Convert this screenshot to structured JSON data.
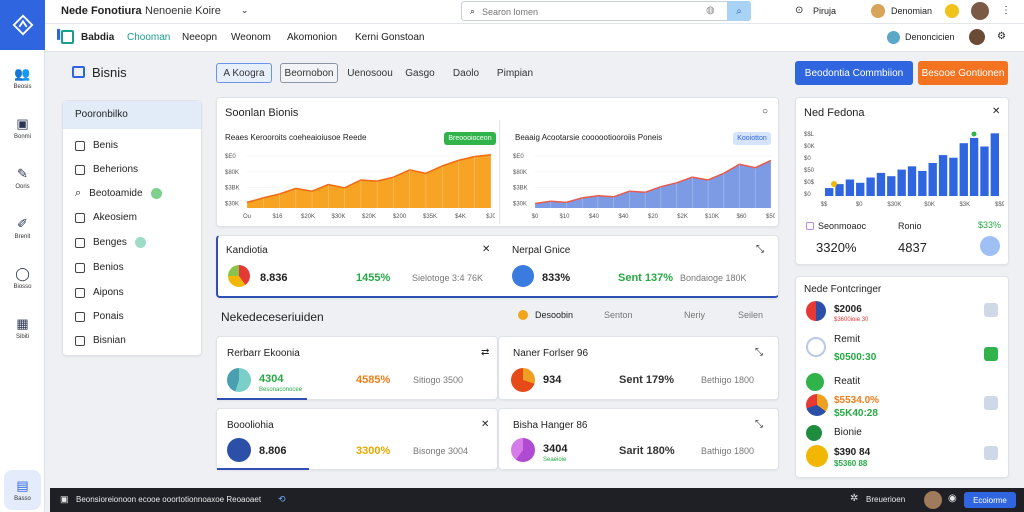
{
  "app": {
    "title": "Nede Fonotiura",
    "subtitle": "Nenoenie Koire"
  },
  "search": {
    "placeholder": "Searon lomen"
  },
  "topbar": {
    "user1": "Piruja",
    "user2": "Denomian"
  },
  "subbar": {
    "brand": "Babdia",
    "brand2": "Chooman",
    "nav": [
      "Neeopn",
      "Weonom",
      "Akomonion",
      "Kerni Gonstoan"
    ],
    "profile": "Denoncicien"
  },
  "page": {
    "title": "Bisnis",
    "tabs": [
      "A Koogra",
      "Beornobon",
      "Uenosoou",
      "Gasgo",
      "Daolo",
      "Pimpian"
    ],
    "primary_button": "Beodontia Commbiion",
    "secondary_button": "Besooe Gontionen"
  },
  "rail": [
    "Beosis",
    "Bonmi",
    "Ooris",
    "Brenit",
    "Biosso",
    "Sibiti",
    "Basso"
  ],
  "filter": {
    "title": "Pooronbilko",
    "items": [
      "Benis",
      "Beherions",
      "Beotoamide",
      "Akeosiem",
      "Benges",
      "Benios",
      "Aipons",
      "Ponais",
      "Bisnian"
    ]
  },
  "trend": {
    "title": "Soonlan Bionis",
    "chart1_title": "Reaes Kerooroits coeheaioiusoe Reede",
    "chart1_badge": "Breoooioceon",
    "chart2_title": "Beaaig Acootarsie coooootiooroiis Poneis",
    "chart2_badge": "Kooiotton",
    "y_ticks": [
      "$E0",
      "$80K",
      "$3BK",
      "$30K"
    ],
    "x_ticks1": [
      "Ou",
      "$16",
      "$20K",
      "$30K",
      "$20K",
      "$200",
      "$35K",
      "$4K",
      "$J0"
    ],
    "x_ticks2": [
      "$0",
      "$10",
      "$40",
      "$40",
      "$20",
      "$2K",
      "$10K",
      "$60",
      "$50"
    ]
  },
  "chart_data": [
    {
      "type": "area",
      "title": "Reaes Kerooroits coeheaioiusoe Reede",
      "y_ticks": [
        "$E0",
        "$80K",
        "$3BK",
        "$30K"
      ],
      "x_ticks": [
        "Ou",
        "$16",
        "$20K",
        "$30K",
        "$20K",
        "$200",
        "$35K",
        "$4K",
        "$J0"
      ],
      "values": [
        0.1,
        0.18,
        0.25,
        0.35,
        0.3,
        0.42,
        0.36,
        0.5,
        0.48,
        0.55,
        0.68,
        0.62,
        0.75,
        0.85,
        0.92,
        0.95
      ]
    },
    {
      "type": "area",
      "title": "Beaaig Acootarsie coooootiooroiis Poneis",
      "y_ticks": [
        "$E0",
        "$80K",
        "$3BK",
        "$30K"
      ],
      "x_ticks": [
        "$0",
        "$10",
        "$40",
        "$40",
        "$20",
        "$2K",
        "$10K",
        "$60",
        "$50"
      ],
      "values": [
        0.08,
        0.12,
        0.1,
        0.18,
        0.22,
        0.2,
        0.3,
        0.28,
        0.38,
        0.45,
        0.55,
        0.5,
        0.62,
        0.78,
        0.72,
        0.85
      ]
    },
    {
      "type": "bar",
      "title": "Ned Fedona",
      "y_ticks": [
        "$$L",
        "$0K",
        "$0",
        "$50",
        "$0$",
        "$0"
      ],
      "x_ticks": [
        "$$",
        "$0",
        "$30K",
        "$0K",
        "$3K",
        "$$9"
      ],
      "values": [
        0.12,
        0.18,
        0.25,
        0.2,
        0.28,
        0.35,
        0.3,
        0.4,
        0.45,
        0.38,
        0.5,
        0.62,
        0.58,
        0.8,
        0.88,
        0.75,
        0.95
      ]
    }
  ],
  "kpi": {
    "card1_title": "Kandiotia",
    "card1_value": "8.836",
    "card1_pct": "1455%",
    "card1_note": "Sielotoge 3:4 76K",
    "card2_title": "Nerpal Gnice",
    "card2_value": "833%",
    "card2_pct": "Sent 137%",
    "card2_note": "Bondaioge 180K"
  },
  "section": {
    "title": "Nekedeceseriuiden",
    "legend": [
      "Desoobin",
      "Senton",
      "Neriy",
      "Seilen"
    ]
  },
  "cards": {
    "c1": {
      "title": "Rerbarr Ekoonia",
      "value": "4304",
      "sub": "Besonaconocee",
      "pct": "4585%",
      "note": "Sitiogo 3500"
    },
    "c2": {
      "title": "Naner Forlser 96",
      "value": "934",
      "pct": "Sent 179%",
      "note": "Bethigo 1800"
    },
    "c3": {
      "title": "Boooliohia",
      "value": "8.806",
      "pct": "3300%",
      "note": "Bisonge 3004"
    },
    "c4": {
      "title": "Bisha Hanger 86",
      "value": "3404",
      "sub": "Seaeioie",
      "pct": "Sarit 180%",
      "note": "Bathigo 1800"
    }
  },
  "rightpanel": {
    "title": "Ned Fedona",
    "stat1_label": "Seonmoaoc",
    "stat1_value": "3320%",
    "stat2_label": "Ronio",
    "stat2_value": "4837",
    "stat3_value": "$33%",
    "y_ticks": [
      "$$L",
      "$0K",
      "$0",
      "$50",
      "$0$",
      "$0"
    ],
    "x_ticks": [
      "$$",
      "$0",
      "$30K",
      "$0K",
      "$3K",
      "$$9"
    ]
  },
  "list": {
    "title": "Nede Fontcringer",
    "items": [
      {
        "value": "$2006",
        "sub": "$3600ioie 30"
      },
      {
        "value": "Remit",
        "sub": "$0500:30"
      },
      {
        "value": "Reatit",
        "sub": ""
      },
      {
        "value": "$5534.0%",
        "sub": "$5K40:28"
      },
      {
        "value": "Bionie",
        "sub": ""
      },
      {
        "value": "$390 84",
        "sub": "$5360 88"
      }
    ]
  },
  "statusbar": {
    "text": "Beonsioreionoon ecooe ooortotionnoaxoe Reoaoaet",
    "right1": "Breuerioen",
    "right2": "Ecoiorme"
  }
}
